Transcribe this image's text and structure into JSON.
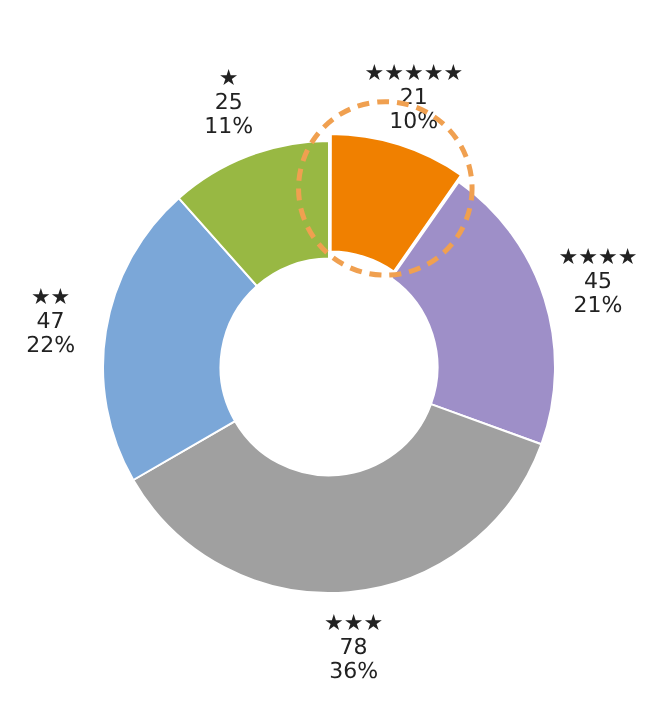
{
  "chart_data": {
    "type": "donut",
    "categories": [
      "★★★★★",
      "★★★★",
      "★★★",
      "★★",
      "★"
    ],
    "values": [
      21,
      45,
      78,
      47,
      25
    ],
    "colors": [
      "#f08000",
      "#9e8fc8",
      "#a0a0a0",
      "#7ba7d8",
      "#98b843"
    ],
    "value_labels": [
      "21\n10%",
      "45\n21%",
      "78\n36%",
      "47\n22%",
      "25\n11%"
    ],
    "legend": false
  }
}
